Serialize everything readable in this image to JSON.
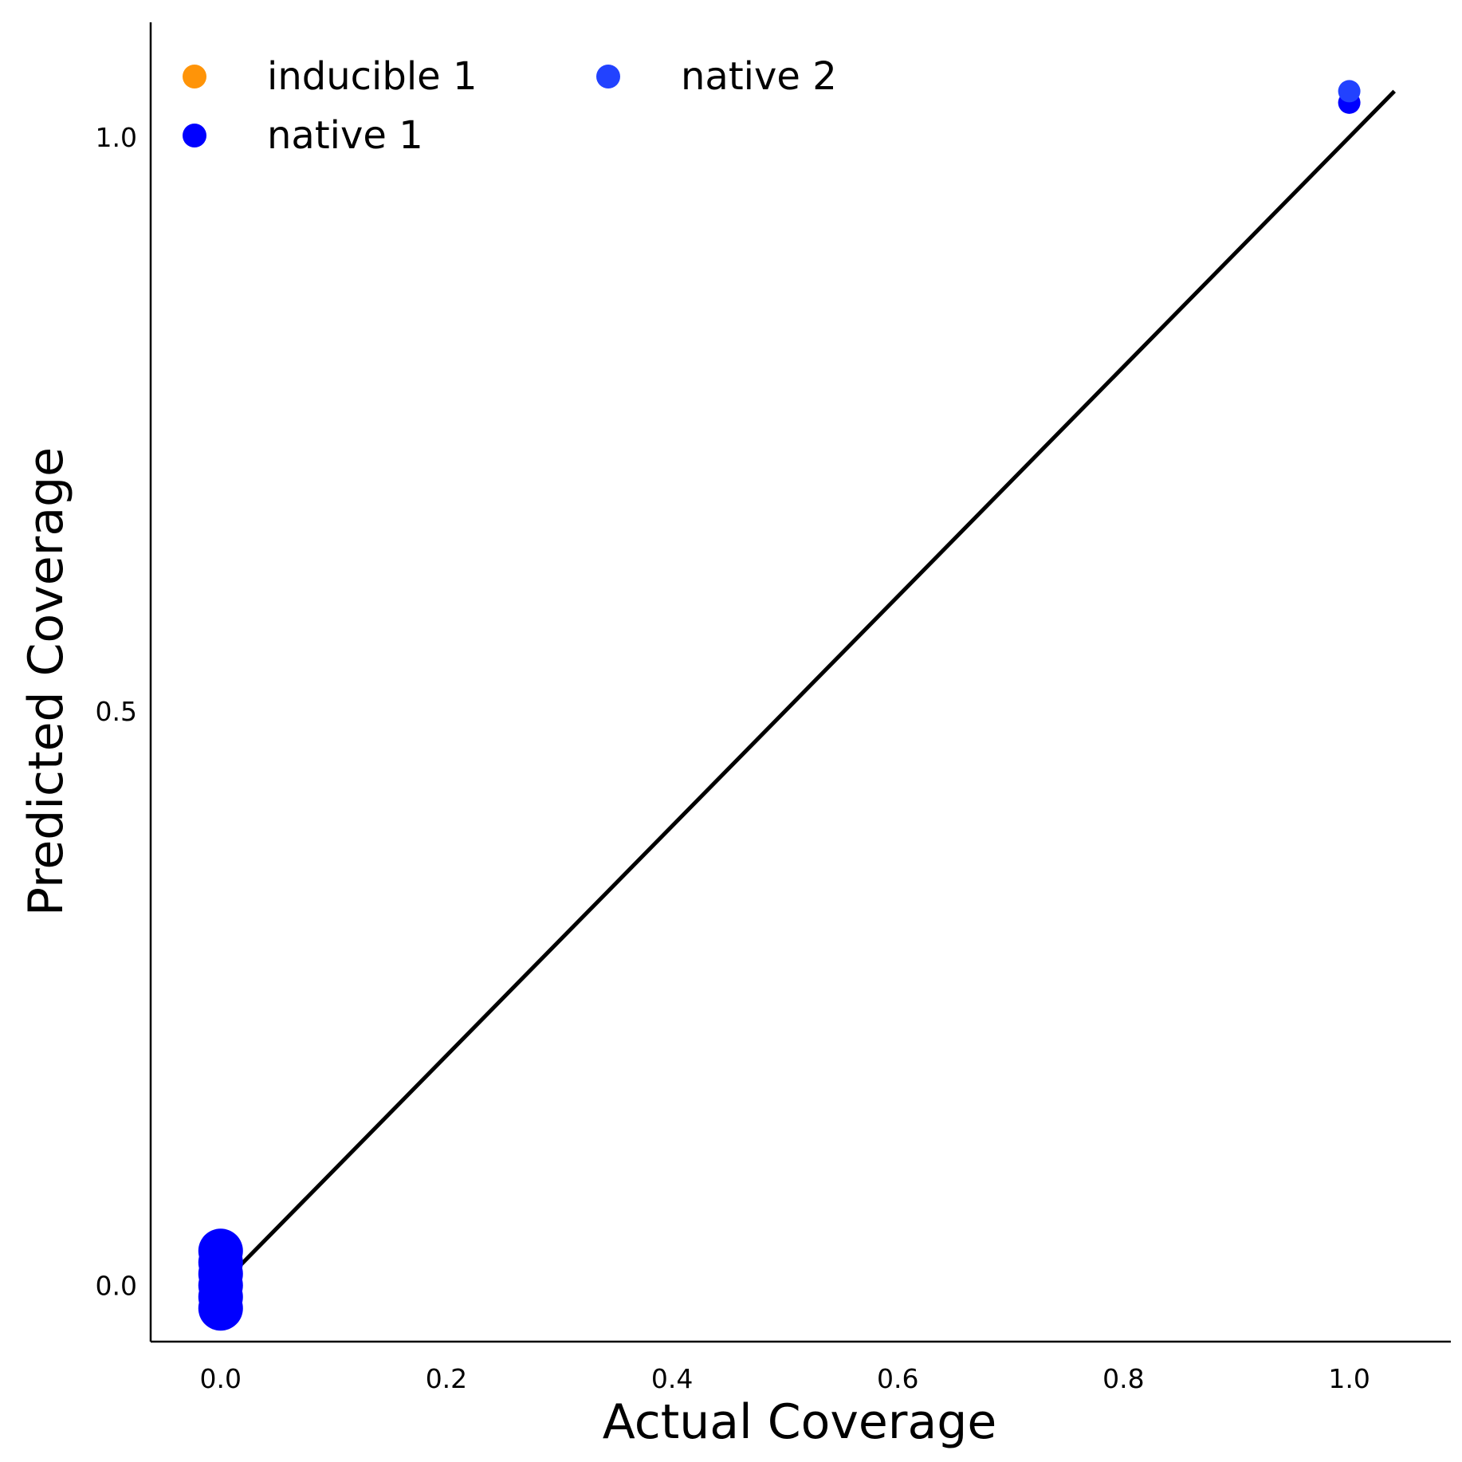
{
  "chart_data": {
    "type": "scatter",
    "title": "",
    "xlabel": "Actual Coverage",
    "ylabel": "Predicted Coverage",
    "xlim": [
      -0.062,
      1.09
    ],
    "ylim": [
      -0.049,
      1.1
    ],
    "x_ticks": [
      {
        "value": 0.0,
        "label": "0.0"
      },
      {
        "value": 0.2,
        "label": "0.2"
      },
      {
        "value": 0.4,
        "label": "0.4"
      },
      {
        "value": 0.6,
        "label": "0.6"
      },
      {
        "value": 0.8,
        "label": "0.8"
      },
      {
        "value": 1.0,
        "label": "1.0"
      }
    ],
    "y_ticks": [
      {
        "value": 0.0,
        "label": "0.0"
      },
      {
        "value": 0.5,
        "label": "0.5"
      },
      {
        "value": 1.0,
        "label": "1.0"
      }
    ],
    "grid": false,
    "legend": {
      "position": "top-left",
      "columns": 2
    },
    "reference_line": {
      "x": [
        0.0,
        1.04
      ],
      "y": [
        0.0,
        1.04
      ],
      "color": "#000000"
    },
    "series": [
      {
        "name": "inducible 1",
        "color": "#ff9408",
        "points": []
      },
      {
        "name": "native 1",
        "color": "#0000ff",
        "points": [
          {
            "x": 0.0,
            "y": -0.02
          },
          {
            "x": 0.0,
            "y": -0.01
          },
          {
            "x": 0.0,
            "y": 0.0
          },
          {
            "x": 0.0,
            "y": 0.01
          },
          {
            "x": 0.0,
            "y": 0.02
          },
          {
            "x": 0.0,
            "y": 0.03
          },
          {
            "x": 1.0,
            "y": 1.03
          }
        ]
      },
      {
        "name": "native 2",
        "color": "#2242ff",
        "points": [
          {
            "x": 1.0,
            "y": 1.04
          }
        ]
      }
    ]
  }
}
